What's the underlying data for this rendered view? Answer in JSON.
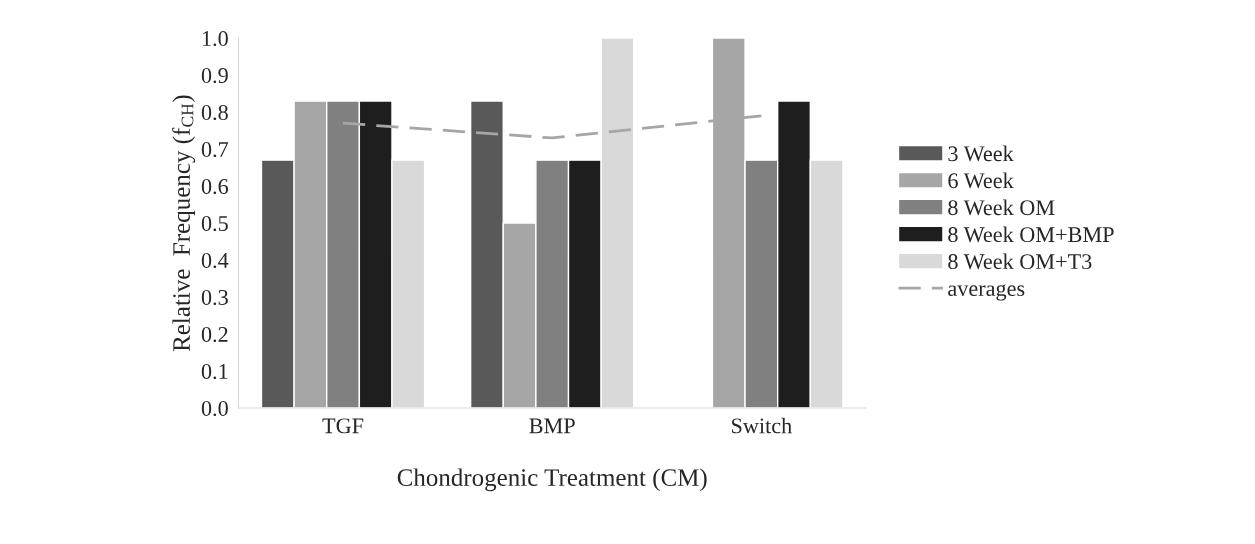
{
  "chart_data": {
    "type": "bar",
    "xlabel": "Chondrogenic Treatment (CM)",
    "ylabel": "Relative  Frequency (f$_{CH}$)",
    "categories": [
      "TGF",
      "BMP",
      "Switch"
    ],
    "series": [
      {
        "name": "3 Week",
        "color": "#595959",
        "values": [
          0.67,
          0.83,
          null
        ]
      },
      {
        "name": "6 Week",
        "color": "#a6a6a6",
        "values": [
          0.83,
          0.5,
          1.0
        ]
      },
      {
        "name": "8 Week OM",
        "color": "#808080",
        "values": [
          0.83,
          0.67,
          0.67
        ]
      },
      {
        "name": "8 Week OM+BMP",
        "color": "#1e1e1e",
        "values": [
          0.83,
          0.67,
          0.83
        ]
      },
      {
        "name": "8 Week OM+T3",
        "color": "#d9d9d9",
        "values": [
          0.67,
          1.0,
          0.67
        ]
      },
      {
        "name": "averages",
        "type": "line",
        "line_style": "dashed",
        "color": "#a6a6a6",
        "values": [
          0.77,
          0.73,
          0.79
        ]
      }
    ],
    "ylim": [
      0,
      1.0
    ],
    "yticks": [
      {
        "value": 0,
        "label": "0.0"
      },
      0.1,
      0.2,
      0.3,
      0.4,
      0.5,
      0.6,
      0.7,
      0.8,
      0.9,
      {
        "value": 1,
        "label": "1.0"
      }
    ],
    "grid": false,
    "legend": "right"
  }
}
